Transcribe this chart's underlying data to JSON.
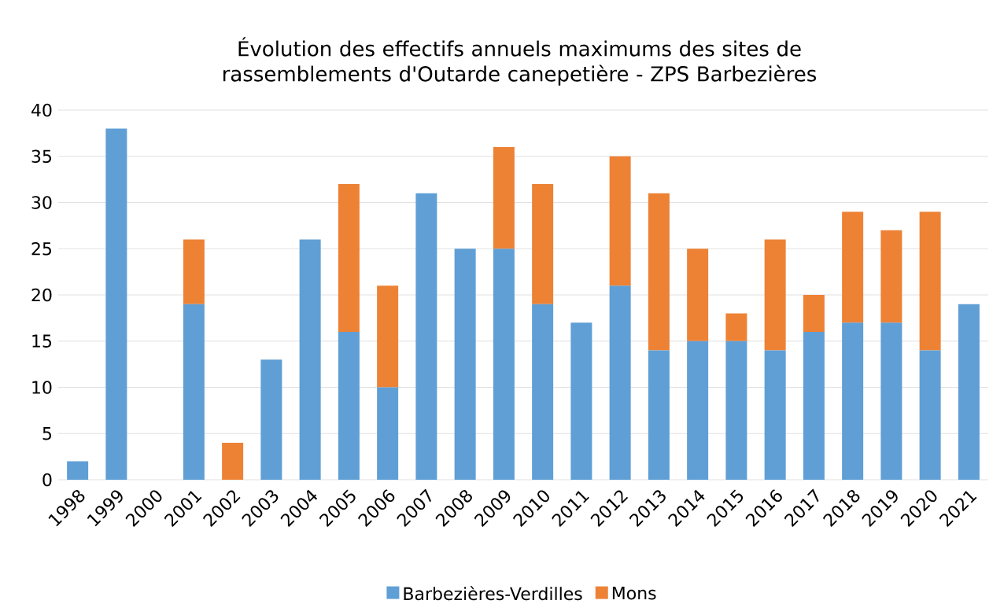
{
  "chart_data": {
    "type": "bar",
    "stacked": true,
    "title": "Évolution des effectifs annuels maximums des sites de rassemblements d'Outarde canepetière - ZPS Barbezières",
    "categories": [
      "1998",
      "1999",
      "2000",
      "2001",
      "2002",
      "2003",
      "2004",
      "2005",
      "2006",
      "2007",
      "2008",
      "2009",
      "2010",
      "2011",
      "2012",
      "2013",
      "2014",
      "2015",
      "2016",
      "2017",
      "2018",
      "2019",
      "2020",
      "2021"
    ],
    "series": [
      {
        "name": "Barbezières-Verdilles",
        "color": "#5f9fd5",
        "values": [
          2,
          38,
          null,
          19,
          null,
          13,
          26,
          16,
          10,
          31,
          25,
          25,
          19,
          17,
          21,
          14,
          15,
          15,
          14,
          16,
          17,
          17,
          14,
          19
        ]
      },
      {
        "name": "Mons",
        "color": "#ed8235",
        "values": [
          null,
          null,
          null,
          7,
          4,
          null,
          null,
          16,
          11,
          null,
          null,
          11,
          13,
          null,
          14,
          17,
          10,
          3,
          12,
          4,
          12,
          10,
          15,
          null
        ]
      }
    ],
    "ylim": [
      0,
      40
    ],
    "yticks": [
      0,
      5,
      10,
      15,
      20,
      25,
      30,
      35,
      40
    ],
    "grid": "y",
    "legend": "bottom"
  }
}
